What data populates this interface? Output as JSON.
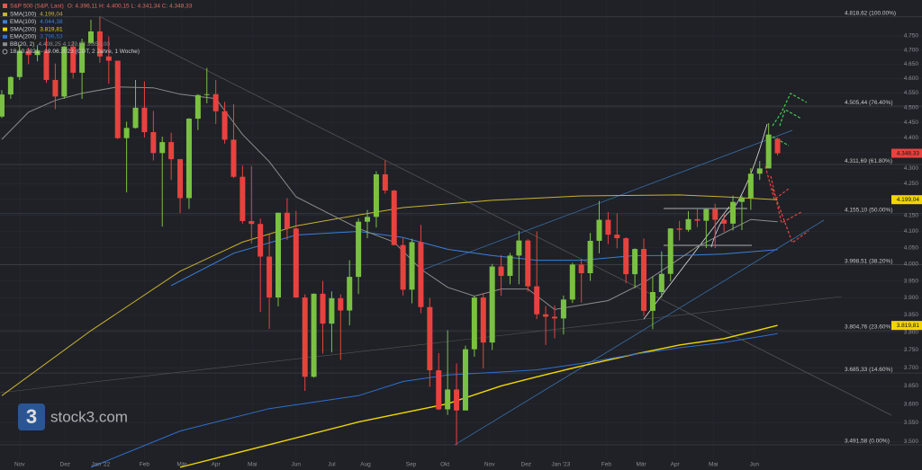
{
  "chart_data": {
    "type": "candlestick",
    "title": "S&P 500 (S&P, Last)",
    "subtitle": "O: 4.396,11 H: 4.400,15 L: 4.341,34 C: 4.348,33",
    "date_range": "18.10.2021 - 19.06.2023 (CDT, 2 Jahre, 1 Woche)",
    "watermark": "stock3.com",
    "logo_glyph": "3",
    "log_scale": true,
    "grid": true,
    "up_color": "#7ac143",
    "down_color": "#e8423f",
    "xlim": [
      -0.2,
      103.2
    ],
    "ylim": [
      3426,
      4880
    ],
    "xticks": [
      {
        "value": 2,
        "label": "Nov"
      },
      {
        "value": 7.1,
        "label": "Dez"
      },
      {
        "value": 11.1,
        "label": "Jan '22"
      },
      {
        "value": 16,
        "label": "Feb"
      },
      {
        "value": 20.2,
        "label": "Mär"
      },
      {
        "value": 24,
        "label": "Apr"
      },
      {
        "value": 28.1,
        "label": "Mai"
      },
      {
        "value": 33,
        "label": "Jun"
      },
      {
        "value": 37,
        "label": "Jul"
      },
      {
        "value": 40.8,
        "label": "Aug"
      },
      {
        "value": 45.9,
        "label": "Sep"
      },
      {
        "value": 49.7,
        "label": "Okt"
      },
      {
        "value": 54.7,
        "label": "Nov"
      },
      {
        "value": 58.8,
        "label": "Dez"
      },
      {
        "value": 62.7,
        "label": "Jan '23"
      },
      {
        "value": 67.8,
        "label": "Feb"
      },
      {
        "value": 71.7,
        "label": "Mär"
      },
      {
        "value": 75.5,
        "label": "Apr"
      },
      {
        "value": 79.8,
        "label": "Mai"
      },
      {
        "value": 84.4,
        "label": "Jun"
      }
    ],
    "yticks": [
      {
        "value": 3500,
        "label": "3.500"
      },
      {
        "value": 3550,
        "label": "3.550"
      },
      {
        "value": 3600,
        "label": "3.600"
      },
      {
        "value": 3650,
        "label": "3.650"
      },
      {
        "value": 3700,
        "label": "3.700"
      },
      {
        "value": 3750,
        "label": "3.750"
      },
      {
        "value": 3800,
        "label": "3.800"
      },
      {
        "value": 3850,
        "label": "3.850"
      },
      {
        "value": 3900,
        "label": "3.900"
      },
      {
        "value": 3950,
        "label": "3.950"
      },
      {
        "value": 4000,
        "label": "4.000"
      },
      {
        "value": 4050,
        "label": "4.050"
      },
      {
        "value": 4100,
        "label": "4.100"
      },
      {
        "value": 4150,
        "label": "4.150"
      },
      {
        "value": 4200,
        "label": "4.200"
      },
      {
        "value": 4250,
        "label": "4.250"
      },
      {
        "value": 4300,
        "label": "4.300"
      },
      {
        "value": 4350,
        "label": "4.350"
      },
      {
        "value": 4400,
        "label": "4.400"
      },
      {
        "value": 4450,
        "label": "4.450"
      },
      {
        "value": 4500,
        "label": "4.500"
      },
      {
        "value": 4550,
        "label": "4.550"
      },
      {
        "value": 4600,
        "label": "4.600"
      },
      {
        "value": 4650,
        "label": "4.650"
      },
      {
        "value": 4700,
        "label": "4.700"
      },
      {
        "value": 4750,
        "label": "4.750"
      }
    ],
    "open": [
      4470,
      4545,
      4605,
      4697,
      4682,
      4698,
      4595,
      4538,
      4712,
      4620,
      4725,
      4766,
      4677,
      4662,
      4398,
      4432,
      4500,
      4418,
      4349,
      4385,
      4329,
      4204,
      4463,
      4543,
      4546,
      4488,
      4393,
      4272,
      4132,
      4123,
      4023,
      3901,
      4158,
      4109,
      3901,
      3675,
      3912,
      3825,
      3899,
      3863,
      3962,
      4130,
      4145,
      4280,
      4228,
      4058,
      3924,
      4067,
      3873,
      3693,
      3586,
      3640,
      3583,
      3752,
      3901,
      3771,
      3993,
      3965,
      4026,
      4072,
      3934,
      3852,
      3845,
      3840,
      3895,
      3999,
      3973,
      4071,
      4136,
      4090,
      4079,
      3970,
      4046,
      3862,
      3917,
      3971,
      4109,
      4105,
      4138,
      4133,
      4169,
      4136,
      4124,
      4192,
      4205,
      4282,
      4299,
      4396.11
    ],
    "high": [
      4560,
      4608,
      4718,
      4708,
      4717,
      4743,
      4652,
      4714,
      4731,
      4740,
      4808,
      4818,
      4748,
      4662,
      4453,
      4595,
      4590,
      4489,
      4403,
      4416,
      4330,
      4465,
      4546,
      4637,
      4595,
      4520,
      4512,
      4308,
      4307,
      4140,
      4090,
      4158,
      4204,
      4164,
      3910,
      3913,
      3950,
      3919,
      3910,
      4012,
      4140,
      4167,
      4290,
      4325,
      4230,
      4079,
      4077,
      4120,
      3900,
      3741,
      3806,
      3712,
      3762,
      3905,
      3914,
      4001,
      4028,
      4034,
      4101,
      4076,
      4100,
      3876,
      3878,
      3907,
      4004,
      4016,
      4095,
      4195,
      4160,
      4156,
      4082,
      4048,
      4078,
      3964,
      4039,
      4110,
      4133,
      4163,
      4169,
      4170,
      4186,
      4154,
      4212,
      4212,
      4300,
      4323,
      4448,
      4400.15
    ],
    "low": [
      4465,
      4530,
      4595,
      4650,
      4660,
      4585,
      4495,
      4530,
      4600,
      4530,
      4720,
      4655,
      4582,
      4395,
      4222,
      4430,
      4400,
      4325,
      4115,
      4262,
      4157,
      4170,
      4425,
      4515,
      4445,
      4380,
      4268,
      4124,
      4063,
      3859,
      3810,
      3875,
      4074,
      3900,
      3636,
      3673,
      3740,
      3743,
      3722,
      3820,
      3911,
      4079,
      4112,
      4218,
      4057,
      3907,
      3884,
      3855,
      3647,
      3584,
      3571,
      3491,
      3590,
      3731,
      3698,
      3750,
      3906,
      3940,
      3940,
      3918,
      3838,
      3764,
      3783,
      3794,
      3885,
      3886,
      3950,
      4033,
      4061,
      4048,
      3943,
      3928,
      3847,
      3809,
      3901,
      3949,
      4072,
      4099,
      4113,
      4049,
      4049,
      4099,
      4103,
      4104,
      4167,
      4262,
      4299,
      4341.34
    ],
    "close": [
      4545,
      4605,
      4697,
      4682,
      4698,
      4595,
      4538,
      4712,
      4620,
      4725,
      4766,
      4677,
      4662,
      4398,
      4432,
      4500,
      4418,
      4349,
      4385,
      4329,
      4204,
      4463,
      4543,
      4546,
      4488,
      4393,
      4272,
      4132,
      4123,
      4023,
      3901,
      4158,
      4109,
      3901,
      3675,
      3912,
      3825,
      3899,
      3863,
      3962,
      4130,
      4145,
      4280,
      4228,
      4058,
      3924,
      4067,
      3873,
      3693,
      3586,
      3640,
      3583,
      3752,
      3901,
      3771,
      3993,
      3965,
      4026,
      4072,
      3934,
      3852,
      3845,
      3840,
      3895,
      3999,
      3973,
      4071,
      4136,
      4090,
      4079,
      3970,
      4046,
      3862,
      3917,
      3971,
      4109,
      4105,
      4138,
      4133,
      4169,
      4136,
      4124,
      4192,
      4205,
      4282,
      4299,
      4410,
      4348.33
    ],
    "series": [
      {
        "name": "SMA(100)",
        "value_label": "4.199,04",
        "color": "#c9b22c",
        "x": [
          0,
          10,
          20,
          27,
          33,
          40,
          45,
          55,
          65,
          76,
          81,
          87
        ],
        "values": [
          3623,
          3805,
          3979,
          4067,
          4117,
          4151,
          4174,
          4197,
          4211,
          4214,
          4208,
          4199.04
        ]
      },
      {
        "name": "EMA(100)",
        "value_label": "4.044,38",
        "color": "#3b7fd9",
        "x": [
          19,
          26,
          33,
          40,
          45,
          50,
          55,
          60,
          65,
          71,
          76,
          81,
          87
        ],
        "values": [
          3936,
          4033,
          4089,
          4100,
          4081,
          4045,
          4026,
          4012,
          4012,
          4026,
          4026,
          4031,
          4044.38
        ]
      },
      {
        "name": "SMA(200)",
        "value_label": "3.819,81",
        "color": "#f2d600",
        "x": [
          20,
          30,
          40,
          50,
          56,
          60,
          65,
          71,
          76,
          81,
          87
        ],
        "values": [
          3433,
          3492,
          3552,
          3601,
          3650,
          3675,
          3705,
          3738,
          3764,
          3782,
          3819.81
        ]
      },
      {
        "name": "EMA(200)",
        "value_label": "3.796,53",
        "color": "#2f6fd0",
        "x": [
          10,
          20,
          30,
          40,
          45,
          50,
          55,
          60,
          65,
          71,
          76,
          81,
          87
        ],
        "values": [
          3433,
          3528,
          3588,
          3623,
          3662,
          3680,
          3687,
          3694,
          3712,
          3738,
          3756,
          3771,
          3796.53
        ]
      },
      {
        "name": "BB(20, 2)",
        "value_label": "4.408,25 4.129,63 3.850,00",
        "color": "#8c8c8c",
        "x": [
          0,
          3,
          6,
          9,
          13,
          17,
          20,
          24,
          27,
          30,
          33,
          37,
          40,
          44,
          47,
          50,
          53,
          56,
          59,
          62,
          65,
          68,
          72,
          75,
          78,
          81,
          84,
          87
        ],
        "values": [
          4394,
          4485,
          4525,
          4549,
          4571,
          4568,
          4546,
          4531,
          4410,
          4321,
          4208,
          4151,
          4109,
          4067,
          3985,
          3931,
          3905,
          3926,
          3926,
          3866,
          3879,
          3892,
          3945,
          3998,
          4053,
          4095,
          4137,
          4129.63
        ]
      }
    ],
    "fib_levels": [
      {
        "value": 4818.62,
        "label": "4.818,62 (100.00%)"
      },
      {
        "value": 4505.44,
        "label": "4.505,44 (76.40%)"
      },
      {
        "value": 4311.69,
        "label": "4.311,69 (61.80%)"
      },
      {
        "value": 4155.1,
        "label": "4.155,10 (50.00%)"
      },
      {
        "value": 3998.51,
        "label": "3.998,51 (38.20%)"
      },
      {
        "value": 3804.76,
        "label": "3.804,76 (23.60%)"
      },
      {
        "value": 3685.33,
        "label": "3.685,33 (14.60%)"
      },
      {
        "value": 3491.58,
        "label": "3.491,58 (0.00%)"
      }
    ],
    "price_tags": [
      {
        "value": 4348.33,
        "label": "4.348,33",
        "color": "#e8423f"
      },
      {
        "value": 4199.04,
        "label": "4.199,04",
        "color": "#f2d600"
      },
      {
        "value": 3819.81,
        "label": "3.819,81",
        "color": "#f2d600"
      }
    ]
  }
}
